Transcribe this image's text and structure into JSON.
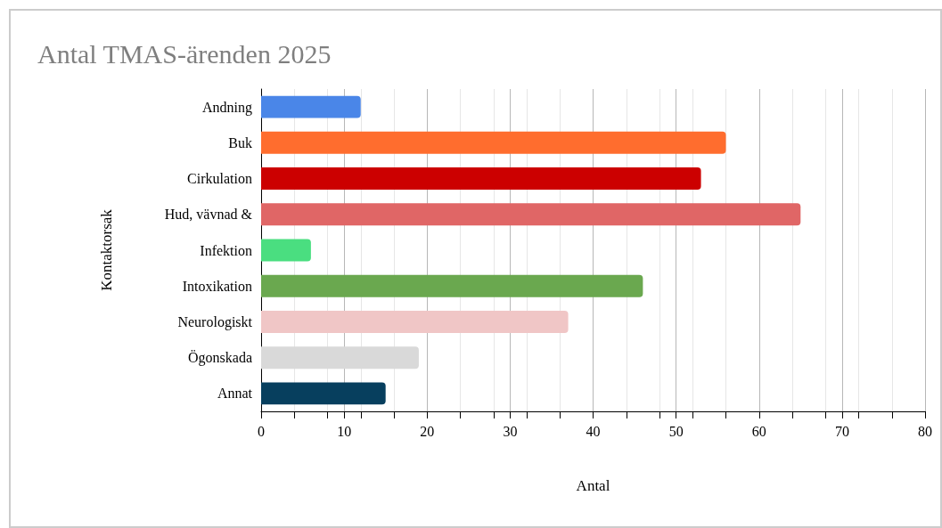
{
  "chart_data": {
    "type": "bar",
    "orientation": "horizontal",
    "title": "Antal TMAS-ärenden 2025",
    "xlabel": "Antal",
    "ylabel": "Kontaktorsak",
    "categories": [
      "Andning",
      "Buk",
      "Cirkulation",
      "Hud, vävnad &",
      "Infektion",
      "Intoxikation",
      "Neurologiskt",
      "Ögonskada",
      "Annat"
    ],
    "values": [
      12,
      56,
      53,
      65,
      6,
      46,
      37,
      19,
      15
    ],
    "colors": [
      "#4a86e8",
      "#ff6d2e",
      "#cc0000",
      "#e06666",
      "#4ade80",
      "#6aa84f",
      "#f0c6c6",
      "#d9d9d9",
      "#073f5e"
    ],
    "xlim": [
      0,
      80
    ],
    "xticks": [
      0,
      10,
      20,
      30,
      40,
      50,
      60,
      70,
      80
    ],
    "grid": "x"
  }
}
